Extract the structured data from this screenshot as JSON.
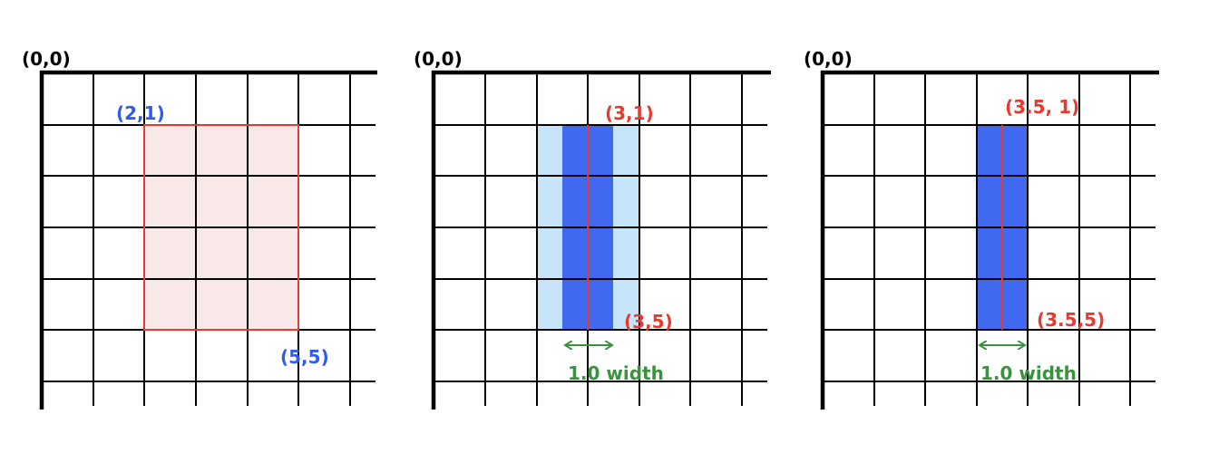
{
  "colors": {
    "grid": "#000000",
    "highlight_red": "#e8392f",
    "highlight_fill_pink": "#f9e8e8",
    "label_blue": "#2f5bf2",
    "label_red": "#e8392f",
    "pixel_dark_blue": "#4169f0",
    "pixel_light_blue": "#c6e4fa",
    "width_green": "#3a9140",
    "origin_text": "#000000"
  },
  "panels": [
    {
      "origin_label": "(0,0)",
      "labels": {
        "top_left": "(2,1)",
        "bottom_right": "(5,5)"
      }
    },
    {
      "origin_label": "(0,0)",
      "labels": {
        "top": "(3,1)",
        "bottom": "(3,5)",
        "width": "1.0 width"
      }
    },
    {
      "origin_label": "(0,0)",
      "labels": {
        "top": "(3.5, 1)",
        "bottom": "(3.5,5)",
        "width": "1.0 width"
      }
    }
  ]
}
